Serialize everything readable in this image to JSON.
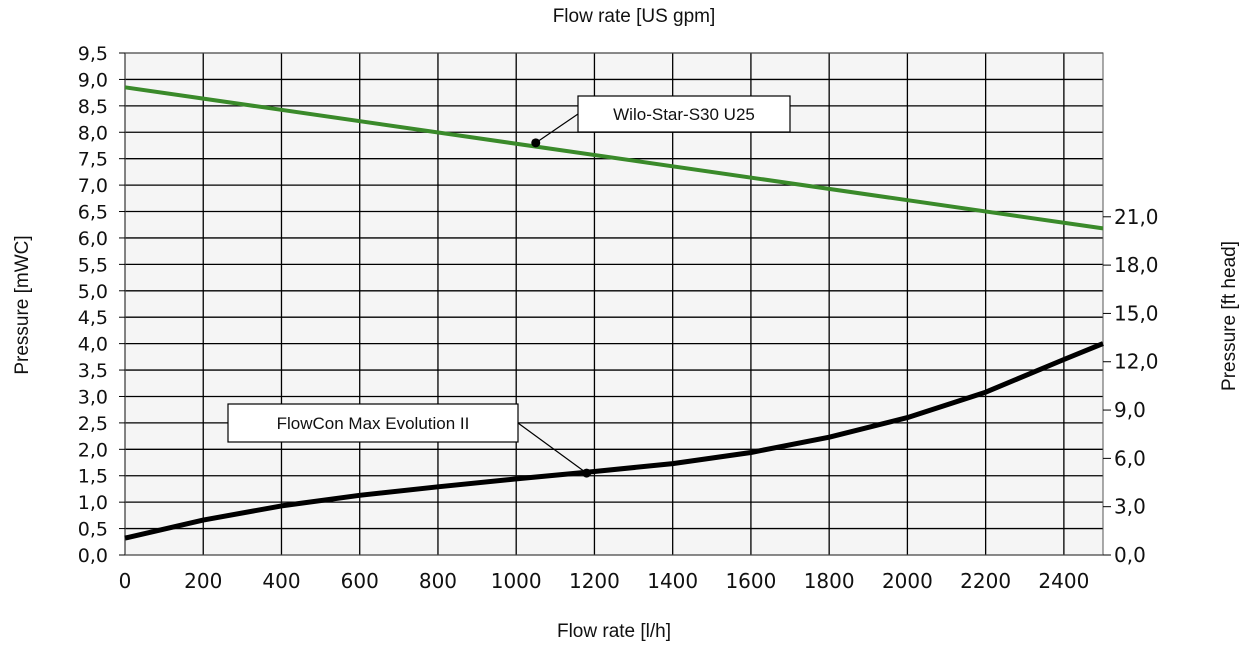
{
  "chart_data": {
    "type": "line",
    "title": "",
    "xlabel": "Flow rate [l/h]",
    "x2label": "Flow rate [US gpm]",
    "ylabel": "Pressure [mWC]",
    "y2label": "Pressure [ft head]",
    "xlim": [
      0,
      2500
    ],
    "ylim": [
      0,
      9.5
    ],
    "y2lim": [
      0,
      31.17
    ],
    "x_ticks": [
      "0",
      "200",
      "400",
      "600",
      "800",
      "1000",
      "1200",
      "1400",
      "1600",
      "1800",
      "2000",
      "2200",
      "2400"
    ],
    "y_ticks": [
      "0,0",
      "0,5",
      "1,0",
      "1,5",
      "2,0",
      "2,5",
      "3,0",
      "3,5",
      "4,0",
      "4,5",
      "5,0",
      "5,5",
      "6,0",
      "6,5",
      "7,0",
      "7,5",
      "8,0",
      "8,5",
      "9,0",
      "9,5"
    ],
    "y2_ticks": [
      "0,0",
      "3,0",
      "6,0",
      "9,0",
      "12,0",
      "15,0",
      "18,0",
      "21,0"
    ],
    "grid": true,
    "plot_background": "#f5f5f5",
    "series": [
      {
        "name": "Wilo-Star-S30 U25",
        "color": "#3a8a2a",
        "x": [
          0,
          2500
        ],
        "y": [
          8.85,
          6.18
        ],
        "callout": {
          "x": 1050,
          "y": 7.8,
          "label": "Wilo-Star-S30 U25"
        }
      },
      {
        "name": "FlowCon Max Evolution II",
        "color": "#000000",
        "x": [
          0,
          200,
          400,
          600,
          800,
          1000,
          1200,
          1400,
          1600,
          1800,
          2000,
          2200,
          2400,
          2500
        ],
        "y": [
          0.32,
          0.66,
          0.93,
          1.13,
          1.29,
          1.44,
          1.58,
          1.73,
          1.94,
          2.23,
          2.6,
          3.08,
          3.7,
          4.0
        ],
        "callout": {
          "x": 1180,
          "y": 1.55,
          "label": "FlowCon Max Evolution II"
        }
      }
    ]
  }
}
